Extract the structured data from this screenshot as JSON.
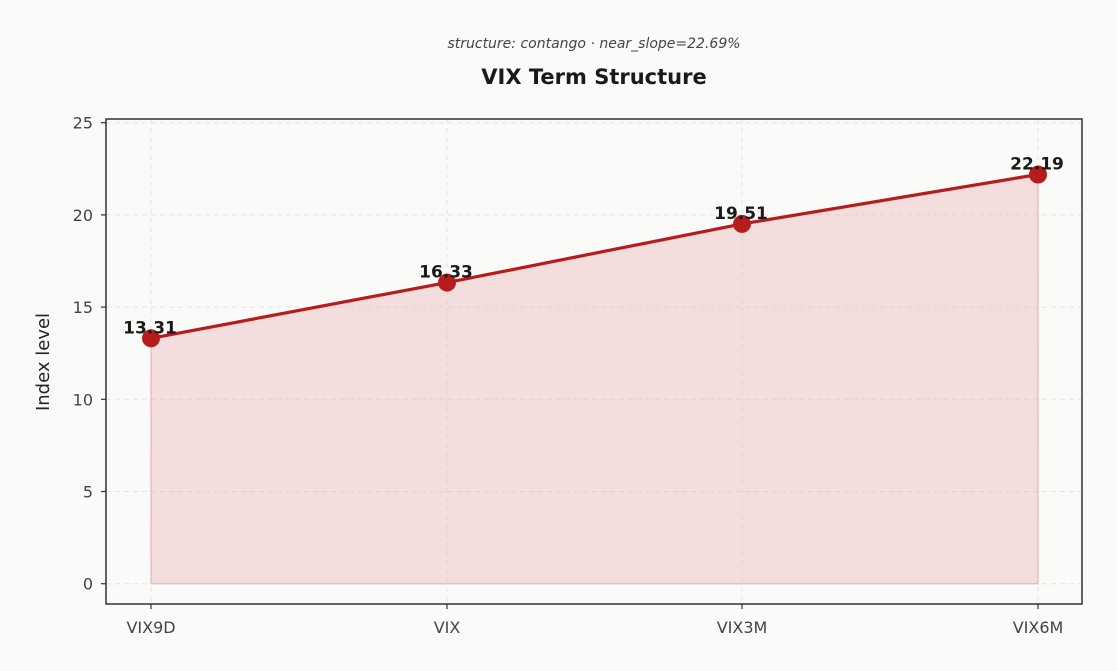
{
  "chart_data": {
    "type": "line",
    "title": "VIX Term Structure",
    "subtitle": "structure: contango · near_slope=22.69%",
    "ylabel": "Index level",
    "xlabel": "",
    "categories": [
      "VIX9D",
      "VIX",
      "VIX3M",
      "VIX6M"
    ],
    "series": [
      {
        "values": [
          13.31,
          16.33,
          19.51,
          22.19
        ],
        "data_labels": [
          "13.31",
          "16.33",
          "19.51",
          "22.19"
        ]
      }
    ],
    "ylim": [
      -1.1,
      25.2
    ],
    "yticks": [
      0,
      5,
      10,
      15,
      20,
      25
    ],
    "grid": true,
    "area_fill": true,
    "colors": {
      "line": "#b71c1c",
      "marker": "#b71c1c",
      "fill": "#e8a9a9",
      "background": "#fafaf9"
    }
  }
}
